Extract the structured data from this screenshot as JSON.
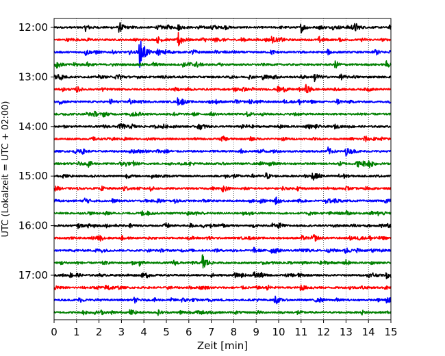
{
  "chart_data": {
    "type": "line",
    "title": "",
    "xlabel": "Zeit  [min]",
    "ylabel": "UTC (Lokalzeit = UTC + 02:00)",
    "xlim": [
      0,
      15
    ],
    "x_ticks": [
      "0",
      "1",
      "2",
      "3",
      "4",
      "5",
      "6",
      "7",
      "8",
      "9",
      "10",
      "11",
      "12",
      "13",
      "14",
      "15"
    ],
    "y_ticks": [
      "12:00",
      "13:00",
      "14:00",
      "15:00",
      "16:00",
      "17:00"
    ],
    "grid": "x-dotted",
    "trace_minutes": 15,
    "trace_colors": [
      "#000000",
      "#ff0000",
      "#0000ff",
      "#008000"
    ],
    "series": [
      {
        "start": "12:00",
        "events": [
          [
            1.4,
            0.5
          ],
          [
            2.9,
            0.6
          ],
          [
            11.0,
            0.7
          ],
          [
            13.4,
            0.6
          ]
        ]
      },
      {
        "start": "12:15",
        "events": [
          [
            5.5,
            0.9
          ],
          [
            4.6,
            0.5
          ],
          [
            11.8,
            0.45
          ]
        ]
      },
      {
        "start": "12:30",
        "events": [
          [
            3.8,
            2.3
          ],
          [
            4.6,
            0.5
          ],
          [
            1.4,
            0.5
          ],
          [
            14.3,
            0.45
          ]
        ]
      },
      {
        "start": "12:45",
        "events": [
          [
            12.5,
            0.6
          ],
          [
            14.8,
            0.5
          ],
          [
            6.0,
            0.35
          ]
        ]
      },
      {
        "start": "13:00",
        "events": [
          [
            11.6,
            0.7
          ],
          [
            0.2,
            0.6
          ],
          [
            2.9,
            0.4
          ]
        ]
      },
      {
        "start": "13:15",
        "events": [
          [
            11.2,
            0.65
          ],
          [
            1.0,
            0.45
          ],
          [
            8.0,
            0.4
          ]
        ]
      },
      {
        "start": "13:30",
        "events": [
          [
            5.5,
            0.5
          ],
          [
            2.5,
            0.4
          ],
          [
            12.6,
            0.4
          ]
        ]
      },
      {
        "start": "13:45",
        "events": [
          [
            8.6,
            0.35
          ],
          [
            3.4,
            0.3
          ],
          [
            10.7,
            0.3
          ]
        ]
      },
      {
        "start": "14:00",
        "events": [
          [
            3.0,
            0.4
          ],
          [
            6.4,
            0.3
          ],
          [
            10.0,
            0.3
          ]
        ]
      },
      {
        "start": "14:15",
        "events": [
          [
            1.7,
            0.3
          ],
          [
            7.5,
            0.3
          ],
          [
            13.8,
            0.3
          ]
        ]
      },
      {
        "start": "14:30",
        "events": [
          [
            12.2,
            0.55
          ],
          [
            4.9,
            0.35
          ],
          [
            0.9,
            0.3
          ]
        ]
      },
      {
        "start": "14:45",
        "events": [
          [
            1.5,
            0.5
          ],
          [
            9.6,
            0.45
          ],
          [
            13.5,
            0.4
          ]
        ]
      },
      {
        "start": "15:00",
        "events": [
          [
            3.2,
            0.3
          ],
          [
            8.0,
            0.3
          ],
          [
            11.5,
            0.3
          ]
        ]
      },
      {
        "start": "15:15",
        "events": [
          [
            7.5,
            0.35
          ],
          [
            2.1,
            0.3
          ],
          [
            13.0,
            0.3
          ]
        ]
      },
      {
        "start": "15:30",
        "events": [
          [
            4.6,
            0.4
          ],
          [
            9.2,
            0.35
          ],
          [
            12.5,
            0.3
          ]
        ]
      },
      {
        "start": "15:45",
        "events": [
          [
            3.9,
            0.35
          ],
          [
            8.4,
            0.3
          ],
          [
            14.0,
            0.3
          ]
        ]
      },
      {
        "start": "16:00",
        "events": [
          [
            10.0,
            0.4
          ],
          [
            14.5,
            0.35
          ],
          [
            5.0,
            0.3
          ]
        ]
      },
      {
        "start": "16:15",
        "events": [
          [
            6.8,
            0.3
          ],
          [
            3.0,
            0.3
          ],
          [
            11.5,
            0.3
          ]
        ]
      },
      {
        "start": "16:30",
        "events": [
          [
            1.8,
            0.3
          ],
          [
            8.9,
            0.35
          ],
          [
            13.5,
            0.3
          ]
        ]
      },
      {
        "start": "16:45",
        "events": [
          [
            6.6,
            1.4
          ],
          [
            3.8,
            0.35
          ],
          [
            13.0,
            0.3
          ]
        ]
      },
      {
        "start": "17:00",
        "events": [
          [
            8.9,
            0.5
          ],
          [
            14.8,
            0.4
          ],
          [
            4.1,
            0.3
          ]
        ]
      },
      {
        "start": "17:15",
        "events": [
          [
            9.5,
            0.35
          ],
          [
            2.3,
            0.3
          ],
          [
            11.0,
            0.3
          ]
        ]
      },
      {
        "start": "17:30",
        "events": [
          [
            14.8,
            0.35
          ],
          [
            9.8,
            0.3
          ],
          [
            5.7,
            0.3
          ]
        ]
      },
      {
        "start": "17:45",
        "events": [
          [
            4.6,
            0.4
          ],
          [
            1.3,
            0.35
          ],
          [
            13.7,
            0.3
          ]
        ]
      }
    ]
  }
}
